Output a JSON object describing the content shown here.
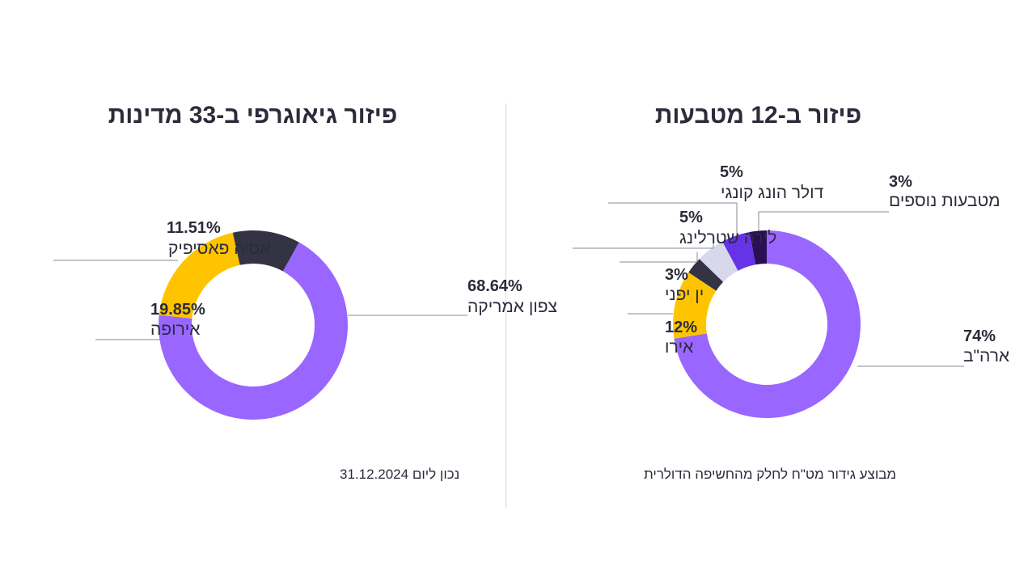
{
  "chart_data": [
    {
      "type": "pie",
      "variant": "donut",
      "title": "פיזור גיאוגרפי ב-33 מדינות",
      "unit": "%",
      "categories": [
        "צפון אמריקה",
        "אירופה",
        "אסיה פאסיפיק"
      ],
      "values": [
        68.64,
        19.85,
        11.51
      ],
      "labels": [
        "68.64%",
        "19.85%",
        "11.51%"
      ],
      "colors": [
        "#9966ff",
        "#ffc400",
        "#333344"
      ]
    },
    {
      "type": "pie",
      "variant": "donut",
      "title": "פיזור ב-12 מטבעות",
      "unit": "%",
      "categories": [
        "דולר ארה\"ב",
        "אירו",
        "ין יפני",
        "לירה שטרלינג",
        "דולר הונג קונגי",
        "מטבעות נוספים"
      ],
      "values": [
        74,
        12,
        3,
        5,
        5,
        3
      ],
      "labels": [
        "74%",
        "12%",
        "3%",
        "5%",
        "5%",
        "3%"
      ],
      "colors": [
        "#9966ff",
        "#ffc400",
        "#333344",
        "#d8d8ec",
        "#6633e6",
        "#2a0f55"
      ]
    }
  ],
  "footnotes": {
    "left": "נכון ליום 31.12.2024",
    "right": "מבוצע גידור מט\"ח לחלק מהחשיפה הדולרית"
  }
}
